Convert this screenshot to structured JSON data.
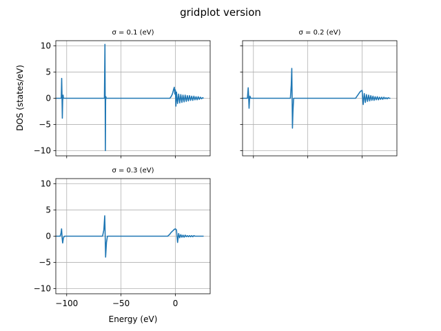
{
  "figure": {
    "suptitle": "gridplot version"
  },
  "chart_data": [
    {
      "type": "line",
      "title": "σ = 0.1 (eV)",
      "xlabel": "",
      "ylabel": "DOS (states/eV)",
      "xlim": [
        -110,
        32
      ],
      "ylim": [
        -11,
        11
      ],
      "xticks": [
        -100,
        -50,
        0
      ],
      "yticks": [
        -10,
        -5,
        0,
        5,
        10
      ],
      "xtick_labels": [
        "",
        "",
        ""
      ],
      "ytick_labels": [
        "−10",
        "−5",
        "0",
        "5",
        "10"
      ],
      "grid": true,
      "color": "#1f77b4",
      "x": [
        -110,
        -105,
        -104.6,
        -104.3,
        -104.0,
        -103.7,
        -103.3,
        -103.0,
        -65.3,
        -64.8,
        -64.6,
        -64.4,
        -64.2,
        -64.0,
        -63.5,
        -5.0,
        -4.0,
        -3.0,
        -2.5,
        -2.0,
        -1.5,
        -1.0,
        -0.5,
        0.0,
        0.5,
        1.0,
        2.0,
        3.0,
        4.0,
        5.0,
        6.0,
        7.0,
        8.0,
        9.0,
        10.0,
        11.0,
        12.0,
        13.0,
        14.0,
        15.0,
        16.0,
        17.0,
        18.0,
        19.0,
        20.0,
        21.0,
        22.0,
        23.0,
        24.0,
        25.0,
        26.0
      ],
      "y": [
        0,
        0,
        3.8,
        0.4,
        -3.8,
        -0.4,
        0.6,
        0,
        0,
        10.3,
        0.5,
        -10.0,
        -0.5,
        0.3,
        0,
        0,
        0.3,
        0.7,
        1.0,
        1.4,
        1.8,
        2.1,
        0.8,
        1.6,
        -1.5,
        1.2,
        -1.0,
        0.8,
        -0.9,
        0.7,
        -0.8,
        0.6,
        -0.7,
        0.6,
        -0.6,
        0.5,
        -0.5,
        0.5,
        -0.4,
        0.4,
        -0.4,
        0.4,
        -0.3,
        0.3,
        -0.3,
        0.3,
        -0.2,
        0.2,
        -0.1,
        0.1,
        0
      ]
    },
    {
      "type": "line",
      "title": "σ = 0.2 (eV)",
      "xlabel": "",
      "ylabel": "",
      "xlim": [
        -110,
        32
      ],
      "ylim": [
        -11,
        11
      ],
      "xticks": [
        -100,
        -50,
        0
      ],
      "yticks": [
        -10,
        -5,
        0,
        5,
        10
      ],
      "xtick_labels": [
        "",
        "",
        ""
      ],
      "ytick_labels": [
        "",
        "",
        "",
        "",
        ""
      ],
      "grid": true,
      "color": "#1f77b4",
      "x": [
        -110,
        -105.5,
        -104.8,
        -104.4,
        -104.0,
        -103.6,
        -103.2,
        -102.5,
        -66.0,
        -65.2,
        -64.7,
        -64.4,
        -64.1,
        -63.6,
        -63.0,
        -6.0,
        -5.0,
        -4.0,
        -3.0,
        -2.0,
        -1.0,
        0.0,
        1.0,
        2.0,
        3.0,
        4.0,
        5.0,
        6.0,
        7.0,
        8.0,
        9.0,
        10.0,
        11.0,
        12.0,
        13.0,
        14.0,
        15.0,
        16.0,
        17.0,
        18.0,
        19.0,
        20.0,
        21.0,
        22.0,
        23.0,
        24.0,
        25.0,
        26.0
      ],
      "y": [
        0,
        0,
        2.0,
        0.3,
        -1.9,
        -0.3,
        0.4,
        0,
        0,
        2.5,
        5.7,
        0.3,
        -5.7,
        -2.4,
        0,
        0,
        0.3,
        0.6,
        0.9,
        1.2,
        1.4,
        1.5,
        -1.2,
        0.9,
        -0.8,
        0.7,
        -0.6,
        0.6,
        -0.5,
        0.5,
        -0.4,
        0.4,
        -0.4,
        0.3,
        -0.3,
        0.3,
        -0.3,
        0.2,
        -0.2,
        0.2,
        -0.2,
        0.2,
        -0.1,
        0.1,
        -0.1,
        0.1,
        0,
        0
      ]
    },
    {
      "type": "line",
      "title": "σ = 0.3 (eV)",
      "xlabel": "Energy (eV)",
      "ylabel": "",
      "xlim": [
        -110,
        32
      ],
      "ylim": [
        -11,
        11
      ],
      "xticks": [
        -100,
        -50,
        0
      ],
      "yticks": [
        -10,
        -5,
        0,
        5,
        10
      ],
      "xtick_labels": [
        "−100",
        "−50",
        "0"
      ],
      "ytick_labels": [
        "−10",
        "−5",
        "0",
        "5",
        "10"
      ],
      "grid": true,
      "color": "#1f77b4",
      "x": [
        -110,
        -106.0,
        -105.2,
        -104.7,
        -104.2,
        -103.7,
        -103.0,
        -102.0,
        -67.0,
        -65.8,
        -65.0,
        -64.6,
        -64.2,
        -63.4,
        -62.5,
        -7.0,
        -6.0,
        -5.0,
        -4.0,
        -3.0,
        -2.0,
        -1.0,
        0.0,
        1.0,
        2.0,
        3.0,
        4.0,
        5.0,
        6.0,
        7.0,
        8.0,
        9.0,
        10.0,
        11.0,
        12.0,
        13.0,
        14.0,
        15.0,
        16.0,
        17.0,
        18.0,
        19.0,
        20.0,
        21.0,
        22.0,
        23.0,
        24.0,
        25.0,
        26.0
      ],
      "y": [
        0,
        0,
        0.6,
        1.4,
        -0.3,
        -1.3,
        -0.3,
        0,
        0,
        1.2,
        3.9,
        0.3,
        -4.0,
        -1.2,
        0,
        0,
        0.2,
        0.4,
        0.7,
        0.9,
        1.1,
        1.3,
        1.4,
        1.2,
        -1.2,
        0.5,
        -0.3,
        0.3,
        -0.2,
        0.2,
        -0.2,
        0.2,
        -0.1,
        0.1,
        -0.1,
        0.1,
        -0.1,
        0.1,
        -0.1,
        0.1,
        0,
        0,
        0,
        0,
        0,
        0,
        0,
        0,
        0
      ]
    }
  ]
}
